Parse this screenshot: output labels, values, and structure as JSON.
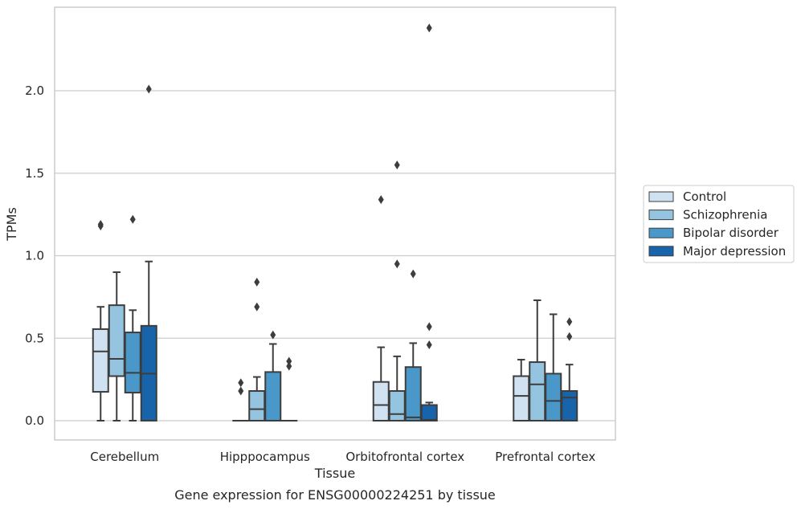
{
  "chart_data": {
    "type": "box",
    "title": "",
    "caption": "Gene expression for ENSG00000224251 by tissue",
    "xlabel": "Tissue",
    "ylabel": "TPMs",
    "categories": [
      "Cerebellum",
      "Hipppocampus",
      "Orbitofrontal cortex",
      "Prefrontal cortex"
    ],
    "ylim": [
      -0.12,
      2.52
    ],
    "yticks": [
      0.0,
      0.5,
      1.0,
      1.5,
      2.0
    ],
    "ytick_labels": [
      "0.0",
      "0.5",
      "1.0",
      "1.5",
      "2.0"
    ],
    "grid": true,
    "legend_position": "right, outside plot",
    "series": [
      {
        "name": "Control",
        "color": "#d0e1f2",
        "boxes": [
          {
            "whislo": 0.0,
            "q1": 0.175,
            "med": 0.42,
            "q3": 0.555,
            "whishi": 0.69,
            "fliers": [
              1.18,
              1.19
            ]
          },
          {
            "whislo": 0.0,
            "q1": 0.0,
            "med": 0.0,
            "q3": 0.0,
            "whishi": 0.0,
            "fliers": [
              0.18,
              0.23
            ]
          },
          {
            "whislo": 0.0,
            "q1": 0.0,
            "med": 0.095,
            "q3": 0.235,
            "whishi": 0.445,
            "fliers": [
              1.34
            ]
          },
          {
            "whislo": 0.0,
            "q1": 0.0,
            "med": 0.15,
            "q3": 0.27,
            "whishi": 0.37,
            "fliers": []
          }
        ]
      },
      {
        "name": "Schizophrenia",
        "color": "#94c4df",
        "boxes": [
          {
            "whislo": 0.0,
            "q1": 0.27,
            "med": 0.375,
            "q3": 0.7,
            "whishi": 0.9,
            "fliers": []
          },
          {
            "whislo": 0.0,
            "q1": 0.0,
            "med": 0.07,
            "q3": 0.18,
            "whishi": 0.265,
            "fliers": [
              0.69,
              0.84
            ]
          },
          {
            "whislo": 0.0,
            "q1": 0.0,
            "med": 0.04,
            "q3": 0.18,
            "whishi": 0.39,
            "fliers": [
              0.95,
              1.55
            ]
          },
          {
            "whislo": 0.0,
            "q1": 0.0,
            "med": 0.22,
            "q3": 0.355,
            "whishi": 0.73,
            "fliers": []
          }
        ]
      },
      {
        "name": "Bipolar disorder",
        "color": "#4a98c9",
        "boxes": [
          {
            "whislo": 0.0,
            "q1": 0.17,
            "med": 0.29,
            "q3": 0.535,
            "whishi": 0.67,
            "fliers": [
              1.22
            ]
          },
          {
            "whislo": 0.0,
            "q1": 0.0,
            "med": 0.0,
            "q3": 0.295,
            "whishi": 0.465,
            "fliers": [
              0.52
            ]
          },
          {
            "whislo": 0.0,
            "q1": 0.0,
            "med": 0.02,
            "q3": 0.325,
            "whishi": 0.47,
            "fliers": [
              0.89
            ]
          },
          {
            "whislo": 0.0,
            "q1": 0.0,
            "med": 0.12,
            "q3": 0.285,
            "whishi": 0.645,
            "fliers": []
          }
        ]
      },
      {
        "name": "Major depression",
        "color": "#1764ab",
        "boxes": [
          {
            "whislo": 0.0,
            "q1": 0.0,
            "med": 0.285,
            "q3": 0.575,
            "whishi": 0.965,
            "fliers": [
              2.01
            ]
          },
          {
            "whislo": 0.0,
            "q1": 0.0,
            "med": 0.0,
            "q3": 0.0,
            "whishi": 0.0,
            "fliers": [
              0.33,
              0.36
            ]
          },
          {
            "whislo": 0.0,
            "q1": 0.0,
            "med": 0.005,
            "q3": 0.095,
            "whishi": 0.11,
            "fliers": [
              0.46,
              0.57,
              2.38
            ]
          },
          {
            "whislo": 0.0,
            "q1": 0.0,
            "med": 0.14,
            "q3": 0.18,
            "whishi": 0.34,
            "fliers": [
              0.51,
              0.6
            ]
          }
        ]
      }
    ]
  }
}
